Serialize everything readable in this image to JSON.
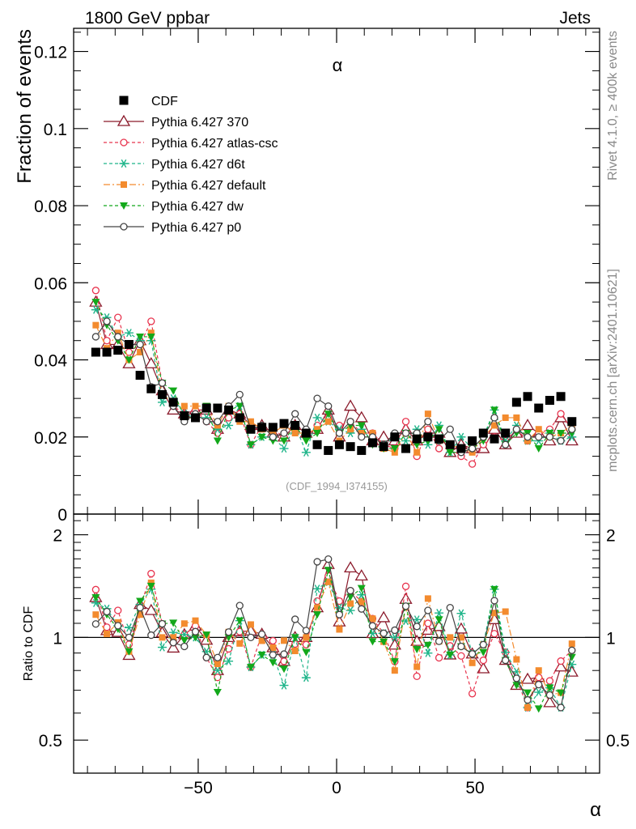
{
  "header": {
    "left": "1800 GeV ppbar",
    "right": "Jets"
  },
  "side_text": {
    "rivet": "Rivet 4.1.0, ≥ 400k events",
    "mcplots": "mcplots.cern.ch [arXiv:2401.10621]"
  },
  "chart_data": {
    "type": "scatter",
    "title": "α",
    "xlabel": "α",
    "ylabel": "Fraction of events",
    "ratio_ylabel": "Ratio to CDF",
    "analysis_label": "(CDF_1994_I374155)",
    "xlim": [
      -95,
      95
    ],
    "ylim": [
      0,
      0.126
    ],
    "ratio_ylim": [
      0.4,
      2.3
    ],
    "x_ticks": [
      "−50",
      "0",
      "50"
    ],
    "y_ticks": [
      "0",
      "0.02",
      "0.04",
      "0.06",
      "0.08",
      "0.1",
      "0.12"
    ],
    "ratio_ticks": [
      "0.5",
      "1",
      "2"
    ],
    "x": [
      -87,
      -83,
      -79,
      -75,
      -71,
      -67,
      -63,
      -59,
      -55,
      -51,
      -47,
      -43,
      -39,
      -35,
      -31,
      -27,
      -23,
      -19,
      -15,
      -11,
      -7,
      -3,
      1,
      5,
      9,
      13,
      17,
      21,
      25,
      29,
      33,
      37,
      41,
      45,
      49,
      53,
      57,
      61,
      65,
      69,
      73,
      77,
      81,
      85
    ],
    "series": [
      {
        "name": "CDF",
        "color": "#000000",
        "marker": "square",
        "dash": "none",
        "values": [
          0.042,
          0.042,
          0.0425,
          0.044,
          0.036,
          0.0325,
          0.031,
          0.029,
          0.0255,
          0.025,
          0.0275,
          0.0275,
          0.027,
          0.025,
          0.022,
          0.0225,
          0.0225,
          0.0235,
          0.023,
          0.021,
          0.018,
          0.0165,
          0.018,
          0.0175,
          0.0165,
          0.0185,
          0.0175,
          0.02,
          0.017,
          0.0195,
          0.02,
          0.0195,
          0.018,
          0.017,
          0.019,
          0.021,
          0.0195,
          0.021,
          0.029,
          0.0305,
          0.0275,
          0.0295,
          0.0305,
          0.024
        ]
      },
      {
        "name": "Pythia 6.427 370",
        "color": "#8b1a2b",
        "marker": "triangle-open",
        "dash": "none",
        "values": [
          0.055,
          0.044,
          0.044,
          0.039,
          0.045,
          0.039,
          0.032,
          0.027,
          0.026,
          0.027,
          0.027,
          0.022,
          0.027,
          0.026,
          0.023,
          0.023,
          0.021,
          0.02,
          0.023,
          0.021,
          0.022,
          0.027,
          0.02,
          0.028,
          0.025,
          0.019,
          0.02,
          0.019,
          0.022,
          0.019,
          0.021,
          0.021,
          0.016,
          0.018,
          0.017,
          0.017,
          0.022,
          0.018,
          0.021,
          0.023,
          0.021,
          0.019,
          0.025,
          0.019
        ]
      },
      {
        "name": "Pythia 6.427 atlas-csc",
        "color": "#e8344e",
        "marker": "circle-open",
        "dash": "4,3",
        "values": [
          0.058,
          0.045,
          0.051,
          0.042,
          0.044,
          0.05,
          0.034,
          0.028,
          0.026,
          0.027,
          0.024,
          0.021,
          0.025,
          0.026,
          0.018,
          0.023,
          0.022,
          0.02,
          0.022,
          0.02,
          0.023,
          0.025,
          0.023,
          0.024,
          0.021,
          0.021,
          0.018,
          0.017,
          0.024,
          0.015,
          0.022,
          0.017,
          0.017,
          0.015,
          0.013,
          0.018,
          0.02,
          0.019,
          0.022,
          0.019,
          0.021,
          0.022,
          0.026,
          0.022
        ]
      },
      {
        "name": "Pythia 6.427 d6t",
        "color": "#1fb58a",
        "marker": "star",
        "dash": "4,3",
        "values": [
          0.053,
          0.051,
          0.046,
          0.047,
          0.045,
          0.045,
          0.029,
          0.03,
          0.026,
          0.025,
          0.025,
          0.022,
          0.023,
          0.028,
          0.018,
          0.02,
          0.02,
          0.017,
          0.023,
          0.016,
          0.025,
          0.024,
          0.022,
          0.021,
          0.022,
          0.019,
          0.018,
          0.02,
          0.019,
          0.022,
          0.018,
          0.023,
          0.016,
          0.02,
          0.017,
          0.02,
          0.027,
          0.019,
          0.023,
          0.019,
          0.019,
          0.021,
          0.019,
          0.02
        ]
      },
      {
        "name": "Pythia 6.427 default",
        "color": "#f38b2e",
        "marker": "square-filled",
        "dash": "8,3,2,3",
        "values": [
          0.049,
          0.043,
          0.047,
          0.04,
          0.042,
          0.047,
          0.031,
          0.029,
          0.028,
          0.028,
          0.028,
          0.023,
          0.028,
          0.024,
          0.024,
          0.022,
          0.021,
          0.023,
          0.021,
          0.021,
          0.022,
          0.024,
          0.019,
          0.022,
          0.021,
          0.021,
          0.017,
          0.016,
          0.021,
          0.016,
          0.026,
          0.019,
          0.018,
          0.017,
          0.016,
          0.02,
          0.023,
          0.025,
          0.025,
          0.019,
          0.022,
          0.02,
          0.021,
          0.023
        ]
      },
      {
        "name": "Pythia 6.427 dw",
        "color": "#12a81a",
        "marker": "triangle-down",
        "dash": "4,3",
        "values": [
          0.055,
          0.049,
          0.045,
          0.04,
          0.046,
          0.046,
          0.034,
          0.032,
          0.025,
          0.025,
          0.028,
          0.019,
          0.027,
          0.028,
          0.018,
          0.02,
          0.019,
          0.019,
          0.023,
          0.019,
          0.021,
          0.026,
          0.021,
          0.023,
          0.023,
          0.018,
          0.017,
          0.017,
          0.021,
          0.018,
          0.019,
          0.022,
          0.016,
          0.016,
          0.017,
          0.019,
          0.027,
          0.018,
          0.021,
          0.021,
          0.017,
          0.021,
          0.021,
          0.021
        ]
      },
      {
        "name": "Pythia 6.427 p0",
        "color": "#444444",
        "marker": "circle-open",
        "dash": "none",
        "values": [
          0.046,
          0.05,
          0.046,
          0.044,
          0.044,
          0.033,
          0.034,
          0.028,
          0.024,
          0.026,
          0.024,
          0.024,
          0.028,
          0.031,
          0.022,
          0.023,
          0.02,
          0.021,
          0.026,
          0.022,
          0.03,
          0.028,
          0.021,
          0.024,
          0.02,
          0.02,
          0.018,
          0.021,
          0.021,
          0.021,
          0.024,
          0.019,
          0.022,
          0.016,
          0.017,
          0.02,
          0.025,
          0.018,
          0.022,
          0.02,
          0.02,
          0.02,
          0.019,
          0.022
        ]
      }
    ]
  }
}
